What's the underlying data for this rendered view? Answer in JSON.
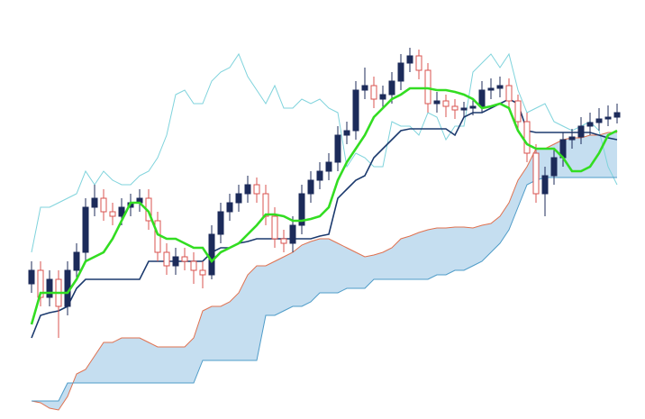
{
  "chart_data": {
    "type": "candlestick",
    "ylim": [
      0,
      465
    ],
    "up_color": "#1c2b5a",
    "down_color": "#d9534f",
    "open": [
      150,
      165,
      135,
      155,
      125,
      165,
      185,
      235,
      245,
      230,
      225,
      235,
      240,
      245,
      220,
      185,
      170,
      180,
      175,
      165,
      160,
      205,
      230,
      240,
      250,
      260,
      250,
      225,
      200,
      195,
      215,
      250,
      265,
      275,
      285,
      315,
      320,
      365,
      370,
      355,
      360,
      375,
      395,
      403,
      387,
      350,
      353,
      347,
      343,
      345,
      347,
      365,
      367,
      370,
      353,
      330,
      295,
      250,
      270,
      290,
      310,
      313,
      325,
      329,
      333,
      335
    ],
    "high": [
      175,
      175,
      165,
      165,
      175,
      195,
      245,
      260,
      255,
      240,
      245,
      250,
      255,
      255,
      230,
      195,
      190,
      190,
      185,
      175,
      215,
      240,
      250,
      260,
      270,
      268,
      260,
      235,
      210,
      225,
      260,
      275,
      285,
      295,
      325,
      330,
      375,
      390,
      380,
      370,
      385,
      405,
      412,
      410,
      395,
      363,
      360,
      355,
      352,
      355,
      375,
      378,
      380,
      378,
      360,
      340,
      305,
      280,
      300,
      318,
      322,
      335,
      340,
      345,
      348,
      350
    ],
    "low": [
      140,
      125,
      125,
      90,
      115,
      155,
      175,
      225,
      220,
      215,
      215,
      225,
      230,
      210,
      175,
      160,
      160,
      165,
      150,
      145,
      155,
      195,
      220,
      230,
      240,
      240,
      215,
      190,
      185,
      185,
      205,
      240,
      255,
      265,
      275,
      305,
      310,
      355,
      345,
      345,
      350,
      365,
      385,
      377,
      340,
      340,
      335,
      333,
      335,
      337,
      340,
      355,
      357,
      343,
      320,
      285,
      240,
      225,
      260,
      280,
      300,
      305,
      315,
      320,
      325,
      328
    ],
    "close": [
      165,
      135,
      155,
      125,
      165,
      185,
      235,
      245,
      230,
      225,
      235,
      240,
      245,
      220,
      185,
      170,
      180,
      175,
      165,
      160,
      205,
      230,
      240,
      250,
      260,
      250,
      225,
      200,
      195,
      215,
      250,
      265,
      275,
      285,
      315,
      320,
      365,
      370,
      355,
      360,
      375,
      395,
      403,
      387,
      350,
      353,
      347,
      343,
      345,
      347,
      365,
      367,
      370,
      353,
      330,
      295,
      250,
      270,
      290,
      310,
      313,
      325,
      329,
      333,
      335,
      340
    ],
    "cloud_color": "#c5def0",
    "lines": [
      {
        "color": "#7fd3dc",
        "width": 1,
        "values": [
          185,
          235,
          235,
          240,
          245,
          250,
          275,
          260,
          275,
          265,
          260,
          260,
          270,
          275,
          290,
          315,
          360,
          365,
          350,
          350,
          375,
          385,
          390,
          405,
          380,
          365,
          350,
          370,
          345,
          345,
          355,
          350,
          355,
          345,
          340,
          280,
          295,
          290,
          280,
          280,
          330,
          325,
          325,
          315,
          340,
          335,
          310,
          325,
          325,
          385,
          395,
          405,
          390,
          405,
          365,
          340,
          345,
          350,
          330,
          325,
          320,
          325,
          330,
          320,
          280,
          260
        ]
      },
      {
        "color": "#e0714f",
        "width": 1,
        "values": [
          20,
          18,
          12,
          10,
          25,
          50,
          55,
          70,
          85,
          85,
          90,
          90,
          90,
          85,
          80,
          80,
          80,
          80,
          90,
          120,
          125,
          125,
          130,
          140,
          160,
          170,
          170,
          175,
          180,
          185,
          193,
          197,
          200,
          200,
          195,
          190,
          185,
          180,
          182,
          185,
          190,
          200,
          203,
          207,
          210,
          212,
          212,
          213,
          213,
          212,
          215,
          217,
          225,
          240,
          265,
          280,
          300,
          300,
          305,
          310,
          312,
          312,
          315,
          315,
          318,
          318
        ]
      },
      {
        "color": "#4f9cc8",
        "width": 1,
        "values": [
          20,
          20,
          20,
          20,
          40,
          40,
          40,
          40,
          40,
          40,
          40,
          40,
          40,
          40,
          40,
          40,
          40,
          40,
          40,
          65,
          65,
          65,
          65,
          65,
          65,
          65,
          115,
          115,
          120,
          125,
          125,
          130,
          140,
          140,
          140,
          145,
          145,
          145,
          155,
          155,
          155,
          155,
          155,
          155,
          155,
          160,
          160,
          165,
          165,
          170,
          175,
          185,
          195,
          210,
          235,
          260,
          265,
          268,
          268,
          268,
          268,
          268,
          268,
          268,
          268,
          268
        ]
      },
      {
        "color": "#1c3a6e",
        "width": 1.6,
        "values": [
          90,
          115,
          118,
          120,
          125,
          145,
          155,
          155,
          155,
          155,
          155,
          155,
          155,
          175,
          175,
          175,
          175,
          175,
          175,
          175,
          185,
          190,
          190,
          195,
          197,
          200,
          200,
          200,
          200,
          200,
          200,
          200,
          203,
          205,
          245,
          255,
          265,
          270,
          290,
          300,
          310,
          320,
          322,
          322,
          322,
          322,
          322,
          315,
          335,
          340,
          340,
          345,
          350,
          355,
          350,
          320,
          318,
          318,
          318,
          318,
          318,
          318,
          318,
          315,
          312,
          310
        ]
      },
      {
        "color": "#33dd22",
        "width": 2.6,
        "values": [
          105,
          140,
          140,
          140,
          140,
          155,
          175,
          180,
          185,
          200,
          220,
          240,
          240,
          230,
          205,
          200,
          200,
          195,
          190,
          190,
          175,
          185,
          190,
          195,
          205,
          215,
          227,
          227,
          225,
          220,
          220,
          222,
          225,
          235,
          265,
          285,
          300,
          315,
          335,
          345,
          355,
          360,
          367,
          367,
          367,
          365,
          365,
          363,
          360,
          355,
          345,
          347,
          350,
          345,
          320,
          305,
          300,
          300,
          300,
          290,
          275,
          275,
          280,
          295,
          315,
          320
        ]
      }
    ],
    "cloud_between": [
      1,
      2
    ]
  }
}
